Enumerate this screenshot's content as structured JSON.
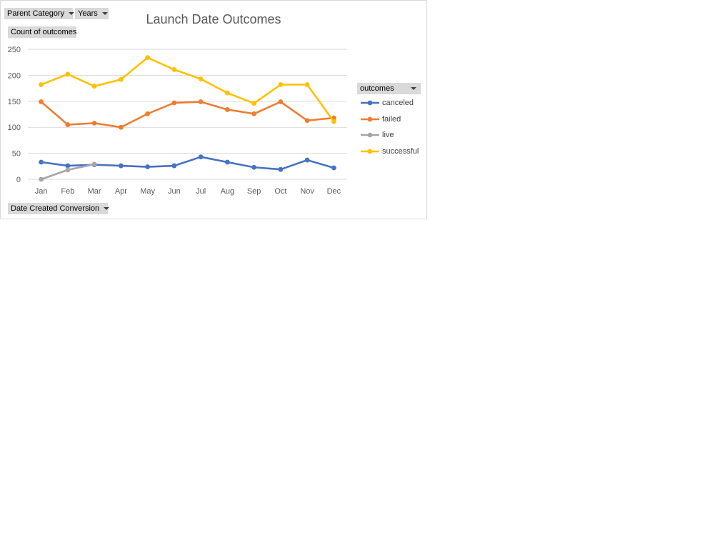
{
  "filters": {
    "parent_category": "Parent Category",
    "years": "Years",
    "values_field": "Count of outcomes",
    "axis_field": "Date Created Conversion",
    "legend_field": "outcomes"
  },
  "chart_data": {
    "type": "line",
    "title": "Launch Date Outcomes",
    "xlabel": "",
    "ylabel": "",
    "categories": [
      "Jan",
      "Feb",
      "Mar",
      "Apr",
      "May",
      "Jun",
      "Jul",
      "Aug",
      "Sep",
      "Oct",
      "Nov",
      "Dec"
    ],
    "ylim": [
      0,
      250
    ],
    "yticks": [
      0,
      50,
      100,
      150,
      200,
      250
    ],
    "grid": true,
    "legend_position": "right",
    "series": [
      {
        "name": "canceled",
        "color": "#4472c4",
        "values": [
          33,
          26,
          28,
          26,
          24,
          26,
          43,
          33,
          23,
          19,
          37,
          22
        ]
      },
      {
        "name": "failed",
        "color": "#ed7d31",
        "values": [
          149,
          105,
          108,
          100,
          126,
          147,
          149,
          134,
          126,
          149,
          113,
          118
        ]
      },
      {
        "name": "live",
        "color": "#a5a5a5",
        "values": [
          0,
          18,
          29,
          null,
          null,
          null,
          null,
          null,
          null,
          null,
          null,
          null
        ]
      },
      {
        "name": "successful",
        "color": "#ffc000",
        "values": [
          182,
          202,
          179,
          192,
          234,
          211,
          193,
          166,
          146,
          182,
          182,
          111
        ]
      }
    ]
  }
}
